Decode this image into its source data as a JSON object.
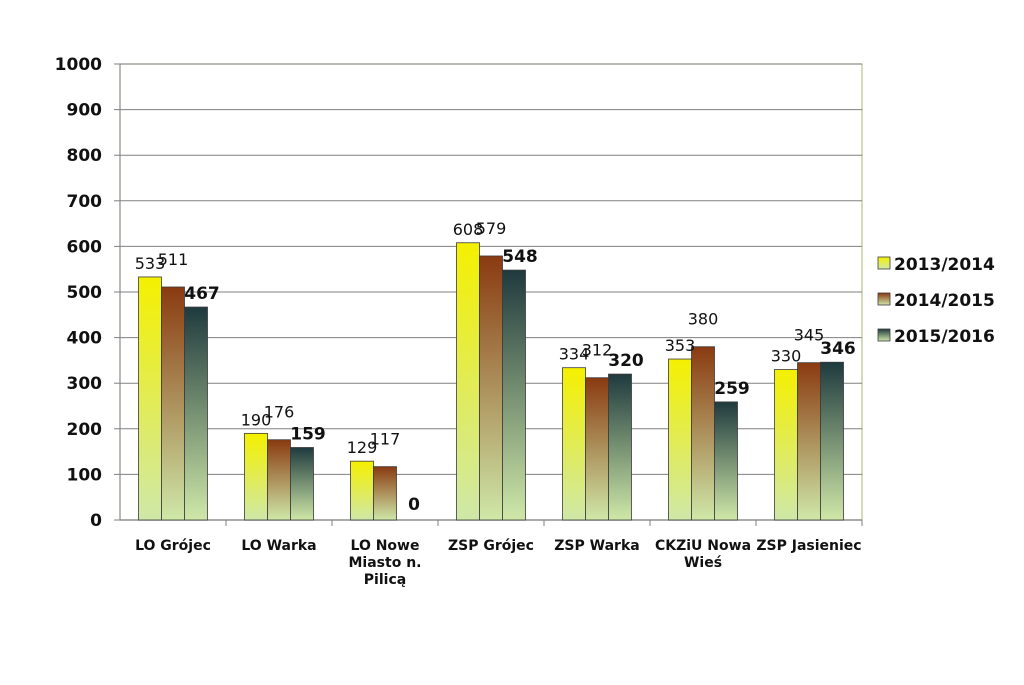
{
  "chart_data": {
    "type": "bar",
    "title": "",
    "xlabel": "",
    "ylabel": "",
    "ylim": [
      0,
      1000
    ],
    "yticks": [
      0,
      100,
      200,
      300,
      400,
      500,
      600,
      700,
      800,
      900,
      1000
    ],
    "grid": true,
    "legend_position": "right",
    "categories": [
      [
        "LO Grójec"
      ],
      [
        "LO Warka"
      ],
      [
        "LO Nowe",
        "Miasto n.",
        "Pilicą"
      ],
      [
        "ZSP Grójec"
      ],
      [
        "ZSP Warka"
      ],
      [
        "CKZiU Nowa",
        "Wieś"
      ],
      [
        "ZSP Jasieniec"
      ]
    ],
    "series": [
      {
        "name": "2013/2014",
        "values": [
          533,
          190,
          129,
          608,
          334,
          353,
          330
        ],
        "color": "#f5f000",
        "color_bottom": "#cfe8a8"
      },
      {
        "name": "2014/2015",
        "values": [
          511,
          176,
          117,
          579,
          312,
          380,
          345
        ],
        "color": "#8a3a10",
        "color_bottom": "#cfe8a8"
      },
      {
        "name": "2015/2016",
        "values": [
          467,
          159,
          0,
          548,
          320,
          259,
          346
        ],
        "color": "#1f3a3e",
        "color_bottom": "#cfe8a8"
      }
    ],
    "colors": {
      "grid": "#808080",
      "plot_border": "#b6c98a",
      "axis": "#808080"
    }
  }
}
